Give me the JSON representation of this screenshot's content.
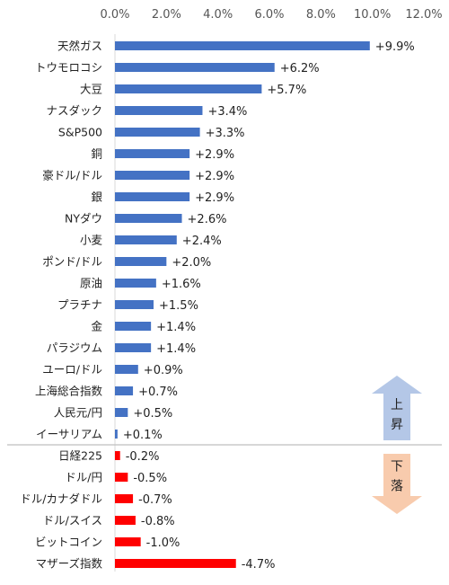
{
  "chart_data": {
    "type": "bar",
    "orientation": "horizontal",
    "title": "",
    "xlabel": "",
    "ylabel": "",
    "xlim": [
      0,
      12
    ],
    "x_ticks": [
      "0.0%",
      "2.0%",
      "4.0%",
      "6.0%",
      "8.0%",
      "10.0%",
      "12.0%"
    ],
    "x_tick_values": [
      0,
      2,
      4,
      6,
      8,
      10,
      12
    ],
    "x_axis_position": "top",
    "grid": false,
    "legend": "none",
    "colors": {
      "rise": "#4472C4",
      "fall": "#FF0000",
      "separator": "#BFBFBF"
    },
    "categories": [
      "天然ガス",
      "トウモロコシ",
      "大豆",
      "ナスダック",
      "S&P500",
      "銅",
      "豪ドル/ドル",
      "銀",
      "NYダウ",
      "小麦",
      "ポンド/ドル",
      "原油",
      "プラチナ",
      "金",
      "パラジウム",
      "ユーロ/ドル",
      "上海総合指数",
      "人民元/円",
      "イーサリアム",
      "日経225",
      "ドル/円",
      "ドル/カナダドル",
      "ドル/スイス",
      "ビットコイン",
      "マザーズ指数"
    ],
    "values": [
      9.9,
      6.2,
      5.7,
      3.4,
      3.3,
      2.9,
      2.9,
      2.9,
      2.6,
      2.4,
      2.0,
      1.6,
      1.5,
      1.4,
      1.4,
      0.9,
      0.7,
      0.5,
      0.1,
      -0.2,
      -0.5,
      -0.7,
      -0.8,
      -1.0,
      -4.7
    ],
    "value_labels": [
      "+9.9%",
      "+6.2%",
      "+5.7%",
      "+3.4%",
      "+3.3%",
      "+2.9%",
      "+2.9%",
      "+2.9%",
      "+2.6%",
      "+2.4%",
      "+2.0%",
      "+1.6%",
      "+1.5%",
      "+1.4%",
      "+1.4%",
      "+0.9%",
      "+0.7%",
      "+0.5%",
      "+0.1%",
      "-0.2%",
      "-0.5%",
      "-0.7%",
      "-0.8%",
      "-1.0%",
      "-4.7%"
    ],
    "groups": [
      {
        "label_chars": [
          "上",
          "昇"
        ],
        "arrow": "up",
        "color": "#B4C7E7"
      },
      {
        "label_chars": [
          "下",
          "落"
        ],
        "arrow": "down",
        "color": "#F8CBAD"
      }
    ]
  }
}
